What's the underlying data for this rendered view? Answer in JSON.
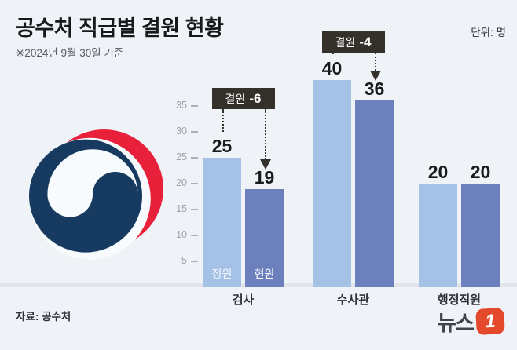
{
  "header": {
    "title": "공수처 직급별 결원 현황",
    "subtitle": "※2024년 9월 30일 기준",
    "unit": "단위: 명"
  },
  "footer": {
    "source": "자료: 공수처",
    "logo_text": "뉴스",
    "logo_badge": "1"
  },
  "colors": {
    "background": "#eff3f8",
    "bar_quota": "#a5c1e6",
    "bar_current": "#6b80bd",
    "badge_bg": "#34302a",
    "baseline": "#e2e6ea",
    "emblem_navy": "#163a60",
    "emblem_red": "#e8203a",
    "emblem_white": "#f8fbfd",
    "logo_red": "#e5492c"
  },
  "chart_data": {
    "type": "bar",
    "title": "공수처 직급별 결원 현황",
    "unit": "명",
    "categories": [
      "검사",
      "수사관",
      "행정직원"
    ],
    "series": [
      {
        "name": "정원",
        "values": [
          25,
          40,
          20
        ]
      },
      {
        "name": "현원",
        "values": [
          19,
          36,
          20
        ]
      }
    ],
    "annotations": [
      {
        "category_index": 0,
        "prefix": "결원",
        "delta": "-6"
      },
      {
        "category_index": 1,
        "prefix": "결원",
        "delta": "-4"
      }
    ],
    "yticks": [
      5,
      10,
      15,
      20,
      25,
      30,
      35
    ],
    "ylim": [
      0,
      42
    ],
    "grid": false,
    "legend_position": "inside-first-group-bars",
    "value_labels_shown": true
  }
}
